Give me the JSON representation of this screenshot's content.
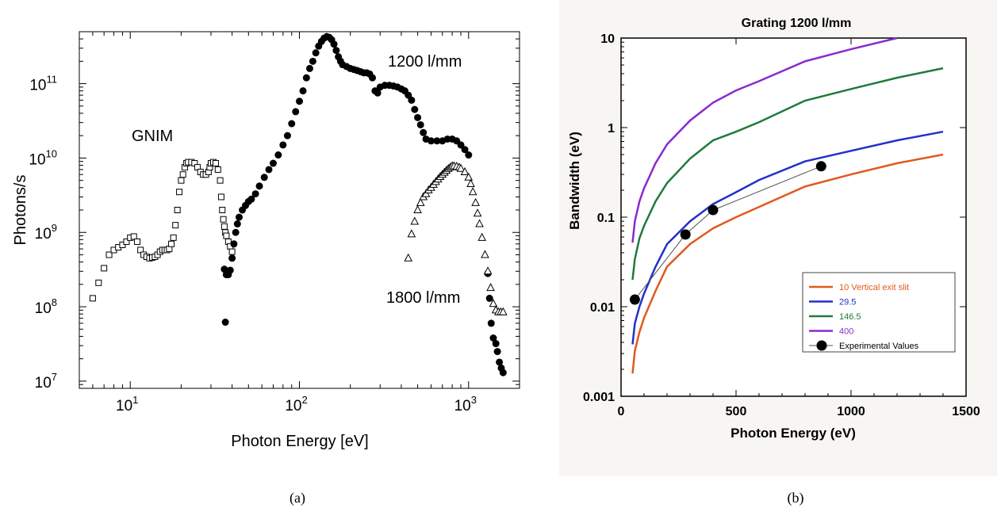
{
  "chart_data": [
    {
      "type": "scatter",
      "panel_label": "(a)",
      "xlabel": "Photon Energy [eV]",
      "ylabel": "Photons/s",
      "xscale": "log",
      "yscale": "log",
      "xlim": [
        5,
        2000
      ],
      "ylim": [
        8000000.0,
        500000000000.0
      ],
      "xtick_labels": [
        {
          "base": "10",
          "exp": "1",
          "value": 10
        },
        {
          "base": "10",
          "exp": "2",
          "value": 100
        },
        {
          "base": "10",
          "exp": "3",
          "value": 1000
        }
      ],
      "ytick_labels": [
        {
          "base": "10",
          "exp": "7",
          "value": 10000000.0
        },
        {
          "base": "10",
          "exp": "8",
          "value": 100000000.0
        },
        {
          "base": "10",
          "exp": "9",
          "value": 1000000000.0
        },
        {
          "base": "10",
          "exp": "10",
          "value": 10000000000.0
        },
        {
          "base": "10",
          "exp": "11",
          "value": 100000000000.0
        }
      ],
      "annotations": [
        "GNIM",
        "1200 l/mm",
        "1800 l/mm"
      ],
      "series": [
        {
          "marker": "open-square",
          "points": [
            [
              6,
              130000000.0
            ],
            [
              6.5,
              210000000.0
            ],
            [
              7,
              330000000.0
            ],
            [
              7.5,
              500000000.0
            ],
            [
              8,
              580000000.0
            ],
            [
              8.5,
              630000000.0
            ],
            [
              9,
              680000000.0
            ],
            [
              9.5,
              750000000.0
            ],
            [
              10,
              850000000.0
            ],
            [
              10.5,
              880000000.0
            ],
            [
              11,
              750000000.0
            ],
            [
              11.5,
              580000000.0
            ],
            [
              12,
              500000000.0
            ],
            [
              12.5,
              470000000.0
            ],
            [
              13,
              450000000.0
            ],
            [
              13.5,
              460000000.0
            ],
            [
              14,
              470000000.0
            ],
            [
              14.5,
              500000000.0
            ],
            [
              15,
              550000000.0
            ],
            [
              15.5,
              580000000.0
            ],
            [
              16,
              580000000.0
            ],
            [
              16.5,
              580000000.0
            ],
            [
              17,
              600000000.0
            ],
            [
              17.5,
              700000000.0
            ],
            [
              18,
              850000000.0
            ],
            [
              18.5,
              1250000000.0
            ],
            [
              19,
              2000000000.0
            ],
            [
              19.5,
              3500000000.0
            ],
            [
              20,
              5000000000.0
            ],
            [
              20.5,
              6000000000.0
            ],
            [
              21,
              7500000000.0
            ],
            [
              21.5,
              8500000000.0
            ],
            [
              22,
              8800000000.0
            ],
            [
              23,
              8800000000.0
            ],
            [
              24,
              8500000000.0
            ],
            [
              25,
              7500000000.0
            ],
            [
              26,
              6500000000.0
            ],
            [
              27,
              6000000000.0
            ],
            [
              28,
              6000000000.0
            ],
            [
              29,
              6500000000.0
            ],
            [
              29.5,
              7500000000.0
            ],
            [
              30,
              8500000000.0
            ],
            [
              31,
              8800000000.0
            ],
            [
              32,
              8500000000.0
            ],
            [
              33,
              7000000000.0
            ],
            [
              34,
              5000000000.0
            ],
            [
              34.5,
              3000000000.0
            ],
            [
              35,
              2000000000.0
            ],
            [
              35.5,
              1500000000.0
            ],
            [
              36,
              1200000000.0
            ],
            [
              36.5,
              1000000000.0
            ],
            [
              37,
              900000000.0
            ],
            [
              38,
              750000000.0
            ],
            [
              39,
              650000000.0
            ],
            [
              40,
              550000000.0
            ]
          ]
        },
        {
          "marker": "filled-circle",
          "points": [
            [
              36,
              320000000.0
            ],
            [
              36.5,
              62000000.0
            ],
            [
              37,
              270000000.0
            ],
            [
              38,
              270000000.0
            ],
            [
              39,
              310000000.0
            ],
            [
              40,
              450000000.0
            ],
            [
              41,
              700000000.0
            ],
            [
              42,
              1000000000.0
            ],
            [
              43,
              1300000000.0
            ],
            [
              44,
              1600000000.0
            ],
            [
              46,
              2000000000.0
            ],
            [
              48,
              2300000000.0
            ],
            [
              50,
              2600000000.0
            ],
            [
              52,
              2800000000.0
            ],
            [
              55,
              3300000000.0
            ],
            [
              58,
              4200000000.0
            ],
            [
              62,
              5500000000.0
            ],
            [
              66,
              7000000000.0
            ],
            [
              70,
              8500000000.0
            ],
            [
              75,
              11000000000.0
            ],
            [
              80,
              15000000000.0
            ],
            [
              85,
              20000000000.0
            ],
            [
              90,
              29000000000.0
            ],
            [
              95,
              42000000000.0
            ],
            [
              100,
              58000000000.0
            ],
            [
              105,
              80000000000.0
            ],
            [
              110,
              120000000000.0
            ],
            [
              115,
              160000000000.0
            ],
            [
              120,
              200000000000.0
            ],
            [
              125,
              260000000000.0
            ],
            [
              130,
              320000000000.0
            ],
            [
              135,
              370000000000.0
            ],
            [
              140,
              410000000000.0
            ],
            [
              145,
              430000000000.0
            ],
            [
              150,
              420000000000.0
            ],
            [
              155,
              390000000000.0
            ],
            [
              160,
              340000000000.0
            ],
            [
              165,
              280000000000.0
            ],
            [
              170,
              230000000000.0
            ],
            [
              175,
              200000000000.0
            ],
            [
              180,
              180000000000.0
            ],
            [
              190,
              170000000000.0
            ],
            [
              200,
              160000000000.0
            ],
            [
              210,
              155000000000.0
            ],
            [
              220,
              150000000000.0
            ],
            [
              230,
              145000000000.0
            ],
            [
              240,
              140000000000.0
            ],
            [
              250,
              140000000000.0
            ],
            [
              260,
              135000000000.0
            ],
            [
              270,
              120000000000.0
            ],
            [
              280,
              80000000000.0
            ],
            [
              290,
              75000000000.0
            ],
            [
              300,
              90000000000.0
            ],
            [
              320,
              95000000000.0
            ],
            [
              340,
              95000000000.0
            ],
            [
              360,
              93000000000.0
            ],
            [
              380,
              90000000000.0
            ],
            [
              400,
              85000000000.0
            ],
            [
              420,
              80000000000.0
            ],
            [
              440,
              70000000000.0
            ],
            [
              460,
              60000000000.0
            ],
            [
              480,
              45000000000.0
            ],
            [
              500,
              35000000000.0
            ],
            [
              520,
              28000000000.0
            ],
            [
              540,
              22000000000.0
            ],
            [
              560,
              18000000000.0
            ],
            [
              600,
              17000000000.0
            ],
            [
              650,
              17000000000.0
            ],
            [
              700,
              17000000000.0
            ],
            [
              750,
              18000000000.0
            ],
            [
              800,
              18000000000.0
            ],
            [
              850,
              17000000000.0
            ],
            [
              900,
              15000000000.0
            ],
            [
              950,
              13000000000.0
            ],
            [
              1000,
              11000000000.0
            ],
            [
              1300,
              280000000.0
            ],
            [
              1330,
              130000000.0
            ],
            [
              1360,
              60000000.0
            ],
            [
              1400,
              38000000.0
            ],
            [
              1450,
              32000000.0
            ],
            [
              1480,
              25000000.0
            ],
            [
              1520,
              18000000.0
            ],
            [
              1560,
              15000000.0
            ],
            [
              1600,
              13000000.0
            ]
          ]
        },
        {
          "marker": "open-triangle",
          "points": [
            [
              440,
              450000000.0
            ],
            [
              460,
              950000000.0
            ],
            [
              480,
              1400000000.0
            ],
            [
              500,
              2000000000.0
            ],
            [
              520,
              2500000000.0
            ],
            [
              540,
              3000000000.0
            ],
            [
              560,
              3300000000.0
            ],
            [
              580,
              3700000000.0
            ],
            [
              600,
              4000000000.0
            ],
            [
              620,
              4400000000.0
            ],
            [
              640,
              4800000000.0
            ],
            [
              660,
              5200000000.0
            ],
            [
              680,
              5600000000.0
            ],
            [
              700,
              6000000000.0
            ],
            [
              720,
              6400000000.0
            ],
            [
              740,
              6800000000.0
            ],
            [
              760,
              7200000000.0
            ],
            [
              780,
              7500000000.0
            ],
            [
              800,
              7800000000.0
            ],
            [
              820,
              7800000000.0
            ],
            [
              850,
              7700000000.0
            ],
            [
              880,
              7500000000.0
            ],
            [
              900,
              7200000000.0
            ],
            [
              950,
              6500000000.0
            ],
            [
              1000,
              5500000000.0
            ],
            [
              1030,
              4500000000.0
            ],
            [
              1060,
              3500000000.0
            ],
            [
              1100,
              2500000000.0
            ],
            [
              1130,
              1800000000.0
            ],
            [
              1160,
              1300000000.0
            ],
            [
              1200,
              850000000.0
            ],
            [
              1250,
              500000000.0
            ],
            [
              1300,
              300000000.0
            ],
            [
              1350,
              180000000.0
            ],
            [
              1400,
              110000000.0
            ],
            [
              1450,
              90000000.0
            ],
            [
              1500,
              85000000.0
            ],
            [
              1550,
              85000000.0
            ],
            [
              1600,
              85000000.0
            ]
          ]
        }
      ]
    },
    {
      "type": "line",
      "panel_label": "(b)",
      "title": "Grating 1200 l/mm",
      "xlabel": "Photon Energy (eV)",
      "ylabel": "Bandwidth (eV)",
      "xscale": "linear",
      "yscale": "log",
      "xlim": [
        0,
        1500
      ],
      "ylim": [
        0.001,
        10
      ],
      "xticks": [
        "0",
        "500",
        "1000",
        "1500"
      ],
      "yticks": [
        "0.001",
        "0.01",
        "0.1",
        "1",
        "10"
      ],
      "legend_position": "bottom-right",
      "series": [
        {
          "name": "10 Vertical exit slit",
          "color": "#e2581f",
          "x": [
            50,
            60,
            80,
            100,
            150,
            200,
            300,
            400,
            500,
            600,
            800,
            1000,
            1200,
            1400
          ],
          "y": [
            0.0018,
            0.0032,
            0.0052,
            0.0075,
            0.015,
            0.028,
            0.05,
            0.075,
            0.1,
            0.13,
            0.22,
            0.3,
            0.4,
            0.5
          ]
        },
        {
          "name": "29.5",
          "color": "#2430c8",
          "x": [
            50,
            60,
            80,
            100,
            150,
            200,
            300,
            400,
            500,
            600,
            800,
            1000,
            1200,
            1400
          ],
          "y": [
            0.0038,
            0.0065,
            0.01,
            0.014,
            0.028,
            0.05,
            0.09,
            0.14,
            0.19,
            0.26,
            0.42,
            0.55,
            0.72,
            0.9
          ]
        },
        {
          "name": "146.5",
          "color": "#1f7a3c",
          "x": [
            50,
            60,
            80,
            100,
            150,
            200,
            300,
            400,
            500,
            600,
            800,
            1000,
            1200,
            1400
          ],
          "y": [
            0.02,
            0.034,
            0.058,
            0.08,
            0.15,
            0.24,
            0.45,
            0.72,
            0.9,
            1.15,
            2.0,
            2.7,
            3.6,
            4.6
          ]
        },
        {
          "name": "400",
          "color": "#8a2ad0",
          "x": [
            50,
            60,
            80,
            100,
            150,
            200,
            300,
            400,
            500,
            600,
            800,
            1000,
            1200
          ],
          "y": [
            0.052,
            0.09,
            0.15,
            0.21,
            0.4,
            0.65,
            1.2,
            1.9,
            2.6,
            3.3,
            5.5,
            7.5,
            10
          ]
        },
        {
          "name": "Experimental Values",
          "color": "#000000",
          "x": [
            60,
            280,
            400,
            870
          ],
          "y": [
            0.012,
            0.064,
            0.12,
            0.37
          ]
        }
      ]
    }
  ]
}
